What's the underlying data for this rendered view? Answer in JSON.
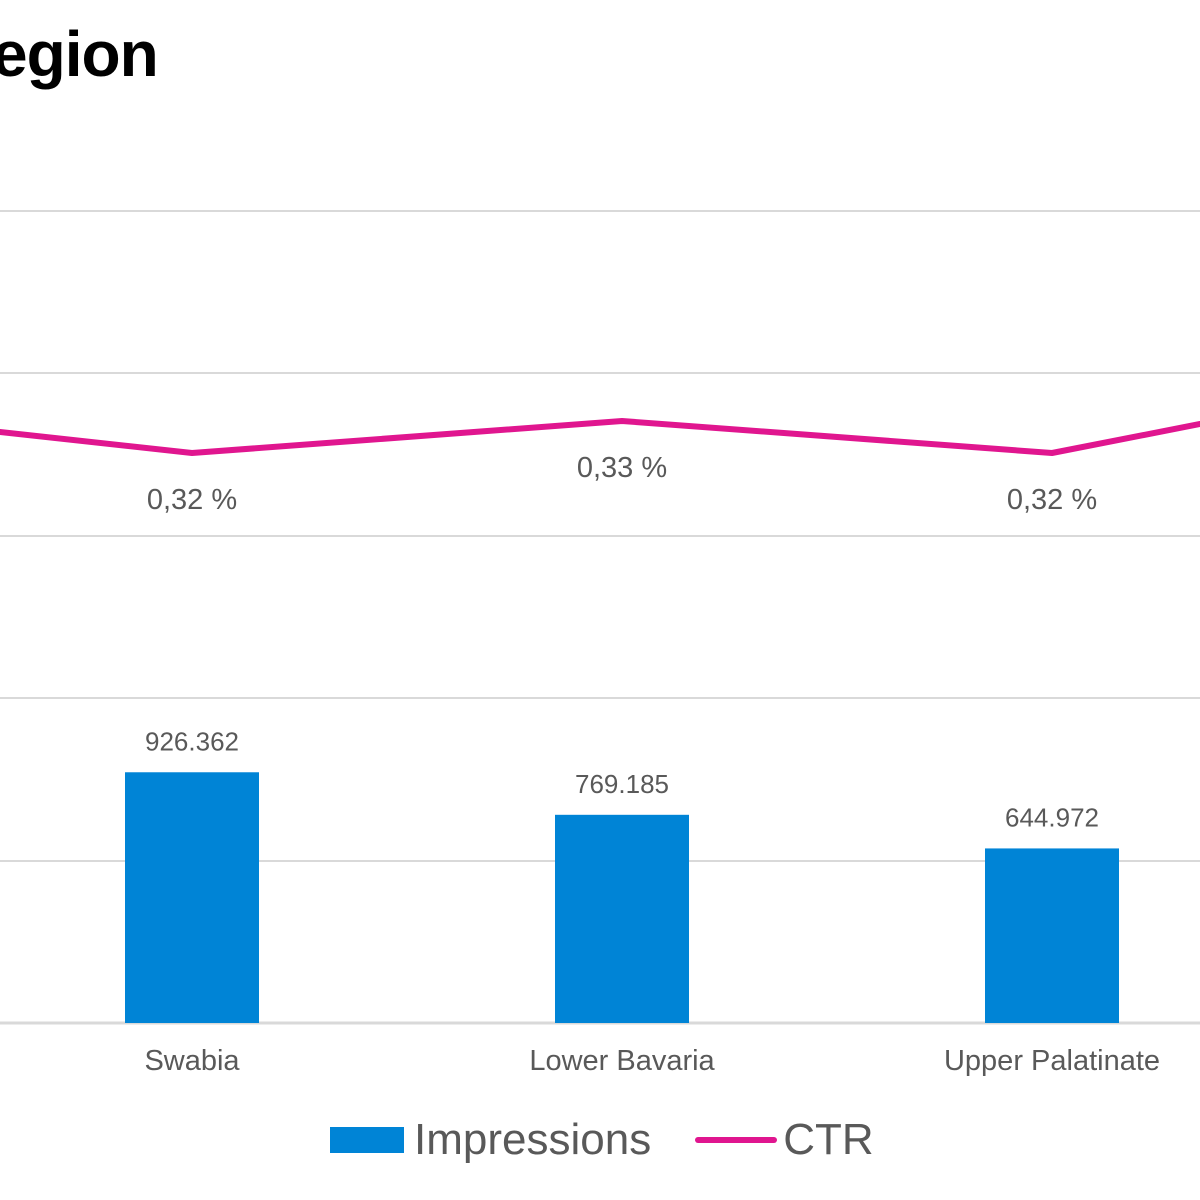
{
  "chart_data": {
    "type": "bar",
    "title": "egion",
    "categories": [
      "Swabia",
      "Lower Bavaria",
      "Upper Palatinate"
    ],
    "series": [
      {
        "name": "Impressions",
        "kind": "bar",
        "values": [
          926362,
          769185,
          644972
        ],
        "labels": [
          "926.362",
          "769.185",
          "644.972"
        ]
      },
      {
        "name": "CTR",
        "kind": "line",
        "values": [
          0.32,
          0.33,
          0.32
        ],
        "labels": [
          "0,32 %",
          "0,33 %",
          "0,32 %"
        ]
      }
    ],
    "colors": {
      "bar": "#0084d6",
      "line": "#e0168f",
      "grid": "#d9d9d9",
      "text": "#595959"
    },
    "grid": true,
    "legend": "bottom"
  }
}
